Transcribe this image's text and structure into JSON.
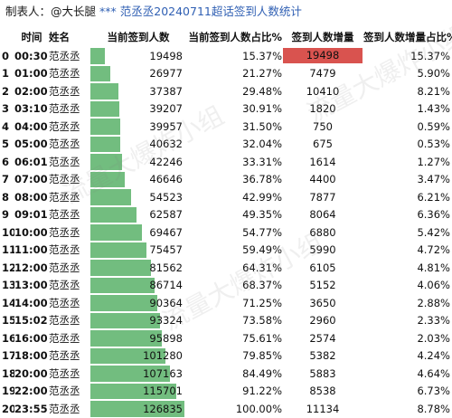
{
  "header": {
    "label": "制表人：",
    "author": "@大长腿",
    "stars": "***",
    "title": "范丞丞20240711超话签到人数统计"
  },
  "columns": [
    "时间",
    "姓名",
    "当前签到人数",
    "当前签到人数占比%",
    "签到人数增量",
    "签到人数增量占比%"
  ],
  "max_count": 126835,
  "rows": [
    {
      "idx": "0",
      "time": "00:30",
      "name": "范丞丞",
      "count": "19498",
      "pct": "15.37%",
      "inc": "19498",
      "inc_pct": "15.37%",
      "highlight": true
    },
    {
      "idx": "1",
      "time": "01:00",
      "name": "范丞丞",
      "count": "26977",
      "pct": "21.27%",
      "inc": "7479",
      "inc_pct": "5.90%"
    },
    {
      "idx": "2",
      "time": "02:00",
      "name": "范丞丞",
      "count": "37387",
      "pct": "29.48%",
      "inc": "10410",
      "inc_pct": "8.21%"
    },
    {
      "idx": "3",
      "time": "03:10",
      "name": "范丞丞",
      "count": "39207",
      "pct": "30.91%",
      "inc": "1820",
      "inc_pct": "1.43%"
    },
    {
      "idx": "4",
      "time": "04:00",
      "name": "范丞丞",
      "count": "39957",
      "pct": "31.50%",
      "inc": "750",
      "inc_pct": "0.59%"
    },
    {
      "idx": "5",
      "time": "05:00",
      "name": "范丞丞",
      "count": "40632",
      "pct": "32.04%",
      "inc": "675",
      "inc_pct": "0.53%"
    },
    {
      "idx": "6",
      "time": "06:01",
      "name": "范丞丞",
      "count": "42246",
      "inc": "1614",
      "pct": "33.31%",
      "inc_pct": "1.27%"
    },
    {
      "idx": "7",
      "time": "07:00",
      "name": "范丞丞",
      "count": "46646",
      "pct": "36.78%",
      "inc": "4400",
      "inc_pct": "3.47%"
    },
    {
      "idx": "8",
      "time": "08:00",
      "name": "范丞丞",
      "count": "54523",
      "pct": "42.99%",
      "inc": "7877",
      "inc_pct": "6.21%"
    },
    {
      "idx": "9",
      "time": "09:01",
      "name": "范丞丞",
      "count": "62587",
      "pct": "49.35%",
      "inc": "8064",
      "inc_pct": "6.36%"
    },
    {
      "idx": "10",
      "time": "10:00",
      "name": "范丞丞",
      "count": "69467",
      "pct": "54.77%",
      "inc": "6880",
      "inc_pct": "5.42%"
    },
    {
      "idx": "11",
      "time": "11:00",
      "name": "范丞丞",
      "count": "75457",
      "pct": "59.49%",
      "inc": "5990",
      "inc_pct": "4.72%"
    },
    {
      "idx": "12",
      "time": "12:00",
      "name": "范丞丞",
      "count": "81562",
      "pct": "64.31%",
      "inc": "6105",
      "inc_pct": "4.81%"
    },
    {
      "idx": "13",
      "time": "13:00",
      "name": "范丞丞",
      "count": "86714",
      "pct": "68.37%",
      "inc": "5152",
      "inc_pct": "4.06%"
    },
    {
      "idx": "14",
      "time": "14:00",
      "name": "范丞丞",
      "count": "90364",
      "pct": "71.25%",
      "inc": "3650",
      "inc_pct": "2.88%"
    },
    {
      "idx": "15",
      "time": "15:02",
      "name": "范丞丞",
      "count": "93324",
      "pct": "73.58%",
      "inc": "2960",
      "inc_pct": "2.33%"
    },
    {
      "idx": "16",
      "time": "16:00",
      "name": "范丞丞",
      "count": "95898",
      "pct": "75.61%",
      "inc": "2574",
      "inc_pct": "2.03%"
    },
    {
      "idx": "17",
      "time": "18:00",
      "name": "范丞丞",
      "count": "101280",
      "pct": "79.85%",
      "inc": "5382",
      "inc_pct": "4.24%"
    },
    {
      "idx": "18",
      "time": "20:00",
      "name": "范丞丞",
      "count": "107163",
      "pct": "84.49%",
      "inc": "5883",
      "inc_pct": "4.64%"
    },
    {
      "idx": "19",
      "time": "22:00",
      "name": "范丞丞",
      "count": "115701",
      "pct": "91.22%",
      "inc": "8538",
      "inc_pct": "6.73%"
    },
    {
      "idx": "20",
      "time": "23:55",
      "name": "范丞丞",
      "count": "126835",
      "pct": "100.00%",
      "inc": "11134",
      "inc_pct": "8.78%"
    }
  ],
  "colors": {
    "bar": "#72bd7f",
    "highlight": "#d9534f",
    "title": "#2f5fb3"
  }
}
